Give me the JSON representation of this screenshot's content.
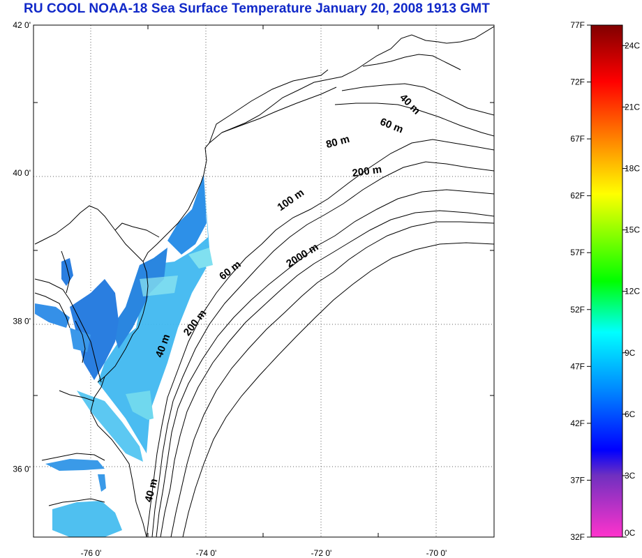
{
  "title": "RU COOL  NOAA-18 Sea Surface Temperature January 20, 2008 1913 GMT",
  "map": {
    "lat_labels": [
      {
        "lat": 42,
        "text": "42 0'"
      },
      {
        "lat": 40,
        "text": "40 0'"
      },
      {
        "lat": 38,
        "text": "38 0'"
      },
      {
        "lat": 36,
        "text": "36 0'"
      }
    ],
    "lon_labels": [
      {
        "lon": -76,
        "text": "-76 0'"
      },
      {
        "lon": -74,
        "text": "-74 0'"
      },
      {
        "lon": -72,
        "text": "-72 0'"
      },
      {
        "lon": -70,
        "text": "-70 0'"
      }
    ],
    "depth_labels": [
      {
        "text": "40 m",
        "lon": -70.5,
        "lat": 40.9,
        "rot": 45
      },
      {
        "text": "60 m",
        "lon": -70.8,
        "lat": 40.6,
        "rot": 22
      },
      {
        "text": "80 m",
        "lon": -71.7,
        "lat": 40.38,
        "rot": -15
      },
      {
        "text": "200 m",
        "lon": -71.2,
        "lat": 39.98,
        "rot": -8
      },
      {
        "text": "100 m",
        "lon": -72.5,
        "lat": 39.6,
        "rot": -35
      },
      {
        "text": "2000 m",
        "lon": -72.3,
        "lat": 38.85,
        "rot": -32
      },
      {
        "text": "60 m",
        "lon": -73.55,
        "lat": 38.65,
        "rot": -38
      },
      {
        "text": "200 m",
        "lon": -74.15,
        "lat": 37.95,
        "rot": -52
      },
      {
        "text": "40 m",
        "lon": -74.7,
        "lat": 37.65,
        "rot": -70
      },
      {
        "text": "40 m",
        "lon": -74.9,
        "lat": 35.7,
        "rot": -75
      }
    ]
  },
  "colorbar": {
    "f_labels": [
      "77F",
      "72F",
      "67F",
      "62F",
      "57F",
      "52F",
      "47F",
      "42F",
      "37F",
      "32F"
    ],
    "c_labels": [
      "24C",
      "21C",
      "18C",
      "15C",
      "12C",
      "9C",
      "6C",
      "3C",
      "0C"
    ],
    "colors": [
      "#800000",
      "#ff0000",
      "#ff8000",
      "#ffff00",
      "#00ff00",
      "#00ffff",
      "#0080ff",
      "#0000ff",
      "#ff33cc"
    ]
  }
}
